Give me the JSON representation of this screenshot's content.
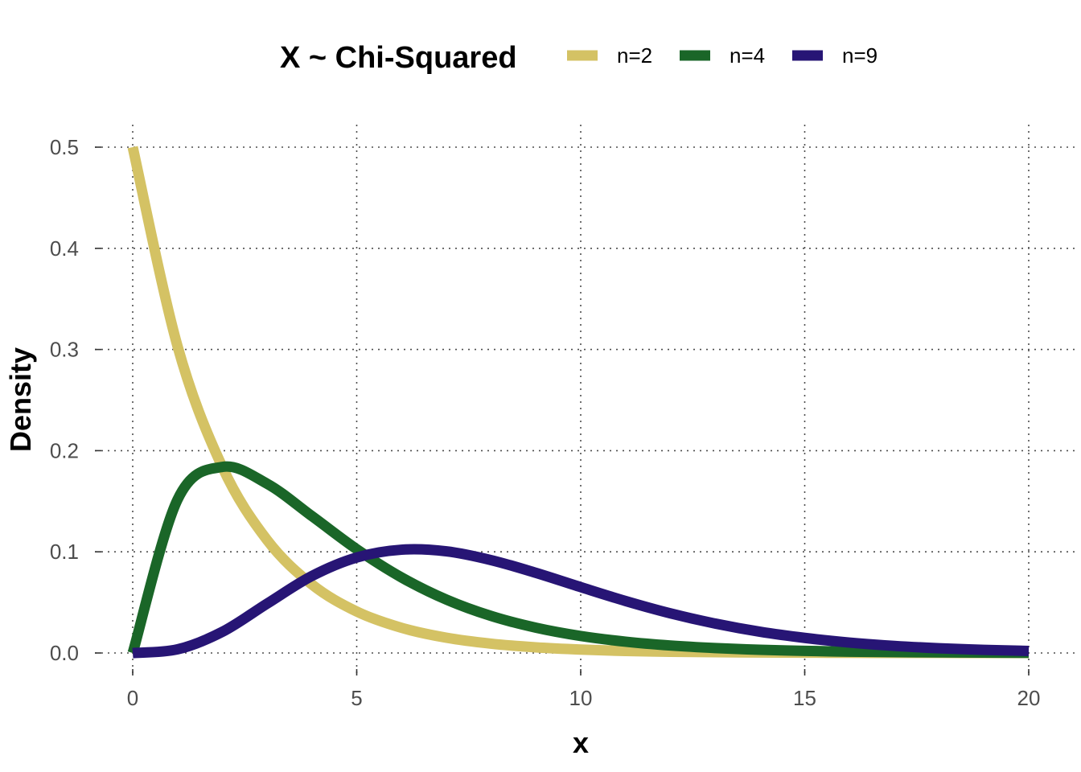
{
  "chart_data": {
    "type": "line",
    "title": "",
    "xlabel": "x",
    "ylabel": "Density",
    "xlim": [
      0,
      20
    ],
    "ylim": [
      0,
      0.5
    ],
    "x_ticks": [
      0,
      5,
      10,
      15,
      20
    ],
    "x_tick_labels": [
      "0",
      "5",
      "10",
      "15",
      "20"
    ],
    "y_ticks": [
      0,
      0.1,
      0.2,
      0.3,
      0.4,
      0.5
    ],
    "y_tick_labels": [
      "0.0",
      "0.1",
      "0.2",
      "0.3",
      "0.4",
      "0.5"
    ],
    "grid": true,
    "legend": {
      "title": "X ~ Chi-Squared",
      "position": "top",
      "entries": [
        "n=2",
        "n=4",
        "n=9"
      ]
    },
    "x": [
      0,
      1,
      2,
      3,
      4,
      5,
      6,
      7,
      8,
      9,
      10,
      11,
      12,
      13,
      14,
      15,
      16,
      17,
      18,
      19,
      20
    ],
    "series": [
      {
        "name": "n=2",
        "color": "#d4c264",
        "values": [
          0.5,
          0.3033,
          0.1839,
          0.1116,
          0.0677,
          0.041,
          0.0249,
          0.0151,
          0.0092,
          0.0056,
          0.0034,
          0.002,
          0.0012,
          0.0008,
          0.0005,
          0.0003,
          0.0002,
          0.0001,
          0.0001,
          0.0,
          0.0
        ]
      },
      {
        "name": "n=4",
        "color": "#1a6628",
        "values": [
          0.0,
          0.1516,
          0.1839,
          0.1673,
          0.1353,
          0.1026,
          0.0747,
          0.0528,
          0.0366,
          0.025,
          0.0168,
          0.0112,
          0.0074,
          0.0049,
          0.0032,
          0.0021,
          0.0013,
          0.0009,
          0.0006,
          0.0004,
          0.0002
        ]
      },
      {
        "name": "n=9",
        "color": "#271575",
        "values": [
          0.0,
          0.0036,
          0.0209,
          0.0488,
          0.0761,
          0.0944,
          0.1021,
          0.1005,
          0.0918,
          0.0792,
          0.0651,
          0.0514,
          0.0392,
          0.0291,
          0.021,
          0.0149,
          0.0103,
          0.007,
          0.0047,
          0.0031,
          0.002
        ]
      }
    ]
  }
}
